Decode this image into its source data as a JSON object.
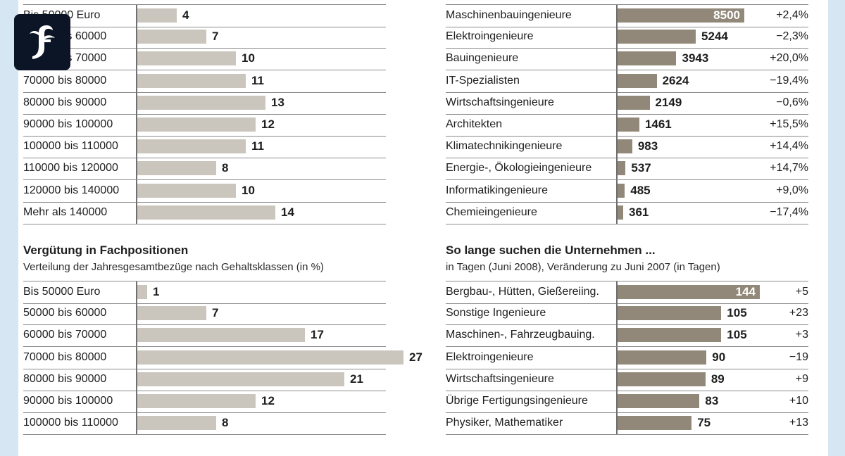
{
  "logo": {
    "letter": "F"
  },
  "chart_data": [
    {
      "type": "bar",
      "title": "",
      "subtitle": "",
      "unit": "%",
      "xlim": [
        0,
        27
      ],
      "categories": [
        "Bis 50000 Euro",
        "50000 bis 60000",
        "60000 bis 70000",
        "70000 bis 80000",
        "80000 bis 90000",
        "90000 bis 100000",
        "100000 bis 110000",
        "110000 bis 120000",
        "120000 bis 140000",
        "Mehr als 140000"
      ],
      "values": [
        4,
        7,
        10,
        11,
        13,
        12,
        11,
        8,
        10,
        14
      ]
    },
    {
      "type": "bar",
      "title": "",
      "subtitle": "",
      "xlim": [
        0,
        8500
      ],
      "categories": [
        "Maschinenbauingenieure",
        "Elektroingenieure",
        "Bauingenieure",
        "IT-Spezialisten",
        "Wirtschaftsingenieure",
        "Architekten",
        "Klimatechnikingenieure",
        "Energie-, Ökologieingenieure",
        "Informatikingenieure",
        "Chemieingenieure"
      ],
      "values": [
        8500,
        5244,
        3943,
        2624,
        2149,
        1461,
        983,
        537,
        485,
        361
      ],
      "changes": [
        "+2,4%",
        "−2,3%",
        "+20,0%",
        "−19,4%",
        "−0,6%",
        "+15,5%",
        "+14,4%",
        "+14,7%",
        "+9,0%",
        "−17,4%"
      ]
    },
    {
      "type": "bar",
      "title": "Vergütung in Fachpositionen",
      "subtitle": "Verteilung der Jahresgesamtbezüge nach Gehaltsklassen (in %)",
      "unit": "%",
      "xlim": [
        0,
        27
      ],
      "categories": [
        "Bis 50000 Euro",
        "50000 bis 60000",
        "60000 bis 70000",
        "70000 bis 80000",
        "80000 bis 90000",
        "90000 bis 100000",
        "100000 bis 110000"
      ],
      "values": [
        1,
        7,
        17,
        27,
        21,
        12,
        8
      ]
    },
    {
      "type": "bar",
      "title": "So lange suchen die Unternehmen ...",
      "subtitle": "in Tagen (Juni 2008), Veränderung zu Juni 2007 (in Tagen)",
      "xlim": [
        0,
        144
      ],
      "categories": [
        "Bergbau-, Hütten, Gießereiing.",
        "Sonstige Ingenieure",
        "Maschinen-, Fahrzeugbauing.",
        "Elektroingenieure",
        "Wirtschaftsingenieure",
        "Übrige Fertigungsingenieure",
        "Physiker, Mathematiker"
      ],
      "values": [
        144,
        105,
        105,
        90,
        89,
        83,
        75
      ],
      "changes": [
        "+5",
        "+23",
        "+3",
        "−19",
        "+9",
        "+10",
        "+13"
      ]
    }
  ],
  "colors": {
    "page_background": "#d7e6f3",
    "salary_bar": "#cbc6bd",
    "count_bar": "#918879",
    "logo_background": "#0c1526"
  }
}
